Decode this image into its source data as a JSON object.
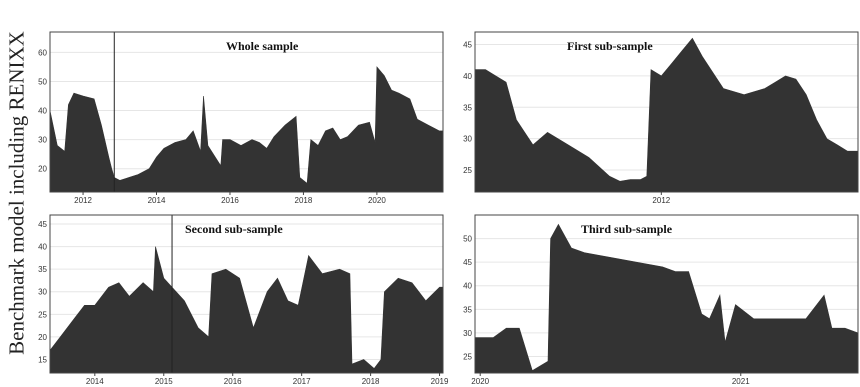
{
  "ylabel": "Benchmark model including RENIXX",
  "colors": {
    "fill": "#333333",
    "frame": "#444444",
    "grid": "#e6e6e6",
    "text": "#333333"
  },
  "chart_data": [
    {
      "type": "area",
      "title": "Whole sample",
      "xlim": [
        2011.1,
        2021.8
      ],
      "ylim": [
        12,
        67
      ],
      "xticks": [
        2012,
        2014,
        2016,
        2018,
        2020
      ],
      "yticks": [
        20,
        30,
        40,
        50,
        60
      ],
      "vline": 2012.85,
      "x": [
        2011.1,
        2011.3,
        2011.5,
        2011.6,
        2011.75,
        2012.0,
        2012.3,
        2012.5,
        2012.7,
        2012.78,
        2012.85,
        2013.0,
        2013.5,
        2013.8,
        2014.0,
        2014.2,
        2014.5,
        2014.8,
        2015.0,
        2015.2,
        2015.28,
        2015.4,
        2015.6,
        2015.75,
        2015.8,
        2016.0,
        2016.3,
        2016.6,
        2016.8,
        2017.0,
        2017.2,
        2017.5,
        2017.8,
        2017.9,
        2018.1,
        2018.2,
        2018.4,
        2018.6,
        2018.8,
        2019.0,
        2019.2,
        2019.5,
        2019.8,
        2019.95,
        2020.0,
        2020.2,
        2020.4,
        2020.6,
        2020.9,
        2021.1,
        2021.4,
        2021.7,
        2021.8
      ],
      "values": [
        40,
        28,
        26,
        42,
        46,
        45,
        44,
        35,
        24,
        20,
        17,
        16,
        18,
        20,
        24,
        27,
        29,
        30,
        33,
        26,
        45,
        28,
        24,
        21,
        30,
        30,
        28,
        30,
        29,
        27,
        31,
        35,
        38,
        17,
        15,
        30,
        28,
        33,
        34,
        30,
        31,
        35,
        36,
        29,
        55,
        52,
        47,
        46,
        44,
        37,
        35,
        33,
        33
      ]
    },
    {
      "type": "area",
      "title": "First sub-sample",
      "xlim": [
        2011.1,
        2012.95
      ],
      "ylim": [
        21.5,
        47
      ],
      "xticks": [
        2012
      ],
      "yticks": [
        25,
        30,
        35,
        40,
        45
      ],
      "x": [
        2011.1,
        2011.15,
        2011.2,
        2011.25,
        2011.3,
        2011.38,
        2011.45,
        2011.55,
        2011.65,
        2011.75,
        2011.8,
        2011.85,
        2011.9,
        2011.93,
        2011.95,
        2012.0,
        2012.05,
        2012.1,
        2012.15,
        2012.2,
        2012.3,
        2012.4,
        2012.5,
        2012.55,
        2012.6,
        2012.65,
        2012.7,
        2012.75,
        2012.8,
        2012.85,
        2012.9,
        2012.95
      ],
      "values": [
        41,
        41,
        40,
        39,
        33,
        29,
        31,
        29,
        27,
        24,
        23.2,
        23.5,
        23.5,
        24,
        41,
        40,
        42,
        44,
        46,
        43,
        38,
        37,
        38,
        39,
        40,
        39.5,
        37,
        33,
        30,
        29,
        28,
        28
      ]
    },
    {
      "type": "area",
      "title": "Second sub-sample",
      "xlim": [
        2013.35,
        2019.05
      ],
      "ylim": [
        12,
        47
      ],
      "xticks": [
        2014,
        2015,
        2016,
        2017,
        2018,
        2019
      ],
      "yticks": [
        15,
        20,
        25,
        30,
        35,
        40,
        45
      ],
      "vline": 2015.12,
      "x": [
        2013.35,
        2013.5,
        2013.7,
        2013.85,
        2014.0,
        2014.2,
        2014.35,
        2014.5,
        2014.7,
        2014.85,
        2014.88,
        2015.0,
        2015.12,
        2015.3,
        2015.5,
        2015.65,
        2015.7,
        2015.9,
        2016.1,
        2016.3,
        2016.5,
        2016.65,
        2016.8,
        2016.95,
        2017.1,
        2017.3,
        2017.55,
        2017.7,
        2017.73,
        2017.9,
        2018.05,
        2018.15,
        2018.2,
        2018.4,
        2018.6,
        2018.8,
        2019.0,
        2019.05
      ],
      "values": [
        17,
        20,
        24,
        27,
        27,
        31,
        32,
        29,
        32,
        30,
        40,
        33,
        31,
        28,
        22,
        20,
        34,
        35,
        33,
        22,
        30,
        33,
        28,
        27,
        38,
        34,
        35,
        34,
        14,
        15,
        13,
        15,
        30,
        33,
        32,
        28,
        31,
        31
      ]
    },
    {
      "type": "area",
      "title": "Third sub-sample",
      "xlim": [
        2019.98,
        2021.45
      ],
      "ylim": [
        21.5,
        55
      ],
      "xticks": [
        2020,
        2021
      ],
      "yticks": [
        25,
        30,
        35,
        40,
        45,
        50
      ],
      "x": [
        2019.98,
        2020.05,
        2020.1,
        2020.15,
        2020.2,
        2020.26,
        2020.27,
        2020.3,
        2020.35,
        2020.4,
        2020.5,
        2020.6,
        2020.7,
        2020.75,
        2020.8,
        2020.85,
        2020.88,
        2020.92,
        2020.94,
        2020.98,
        2021.05,
        2021.15,
        2021.25,
        2021.32,
        2021.35,
        2021.4,
        2021.45
      ],
      "values": [
        29,
        29,
        31,
        31,
        22,
        24,
        50,
        53,
        48,
        47,
        46,
        45,
        44,
        43,
        43,
        34,
        33,
        38,
        28,
        36,
        33,
        33,
        33,
        38,
        31,
        31,
        30
      ]
    }
  ]
}
